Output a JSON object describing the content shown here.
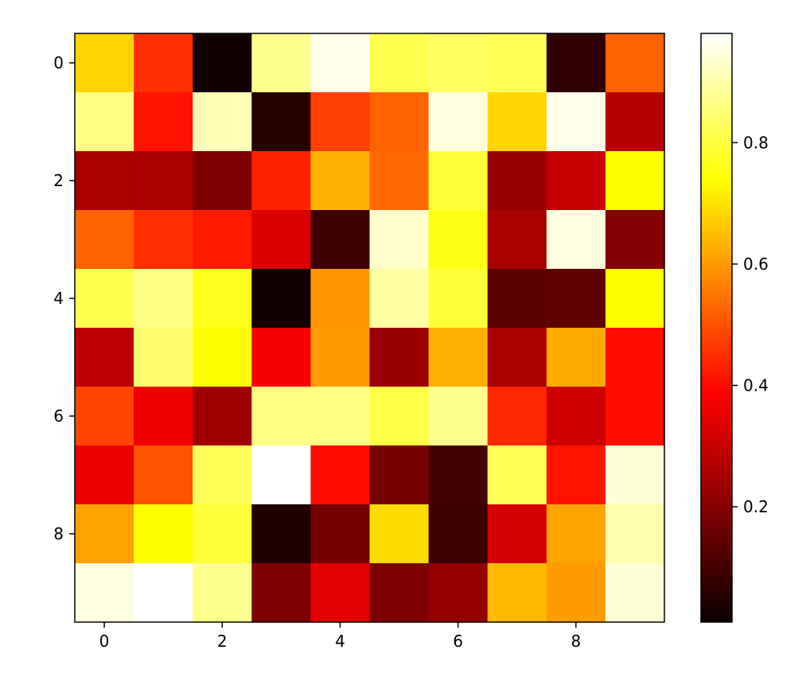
{
  "chart_data": {
    "type": "heatmap",
    "colormap": "hot",
    "x_ticks": [
      "0",
      "2",
      "4",
      "6",
      "8"
    ],
    "y_ticks": [
      "0",
      "2",
      "4",
      "6",
      "8"
    ],
    "colorbar_ticks": [
      "0.2",
      "0.4",
      "0.6",
      "0.8"
    ],
    "value_range": [
      0.01,
      0.98
    ],
    "grid": false,
    "colorbar_position": "right",
    "rows": [
      [
        0.66,
        0.43,
        0.02,
        0.87,
        0.96,
        0.81,
        0.83,
        0.82,
        0.06,
        0.5
      ],
      [
        0.86,
        0.39,
        0.91,
        0.05,
        0.45,
        0.5,
        0.95,
        0.66,
        0.96,
        0.25
      ],
      [
        0.23,
        0.23,
        0.17,
        0.41,
        0.61,
        0.51,
        0.79,
        0.21,
        0.27,
        0.72
      ],
      [
        0.5,
        0.43,
        0.4,
        0.3,
        0.08,
        0.93,
        0.75,
        0.23,
        0.95,
        0.18
      ],
      [
        0.81,
        0.86,
        0.76,
        0.02,
        0.57,
        0.89,
        0.79,
        0.12,
        0.13,
        0.72
      ],
      [
        0.26,
        0.84,
        0.73,
        0.34,
        0.58,
        0.21,
        0.61,
        0.23,
        0.6,
        0.38
      ],
      [
        0.46,
        0.33,
        0.22,
        0.86,
        0.86,
        0.8,
        0.87,
        0.42,
        0.28,
        0.38
      ],
      [
        0.32,
        0.48,
        0.82,
        0.98,
        0.38,
        0.16,
        0.09,
        0.82,
        0.39,
        0.94
      ],
      [
        0.59,
        0.73,
        0.79,
        0.04,
        0.16,
        0.67,
        0.08,
        0.29,
        0.59,
        0.9
      ],
      [
        0.95,
        0.98,
        0.87,
        0.17,
        0.31,
        0.17,
        0.2,
        0.62,
        0.58,
        0.94
      ]
    ]
  }
}
